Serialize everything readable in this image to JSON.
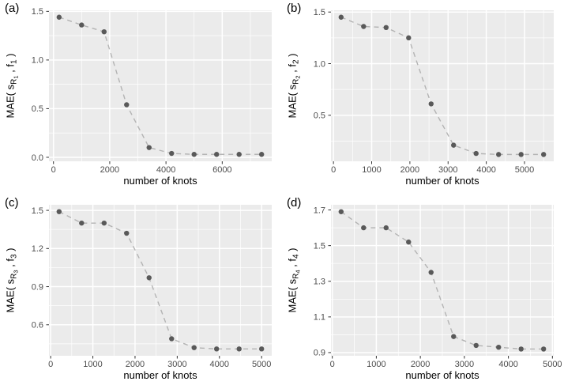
{
  "figure": {
    "background": "#ffffff",
    "panel_bg": "#ebebeb",
    "grid_color": "#ffffff",
    "point_color": "#595959",
    "line_color": "#b3b3b3",
    "tick_label_color": "#4d4d4d",
    "tick_mark_color": "#333333",
    "axis_title_color": "#000000"
  },
  "chart_data": [
    {
      "panel_label": "(a)",
      "type": "line",
      "line_style": "dashed",
      "grid": true,
      "xlabel": "number of knots",
      "ylabel_text": "MAE( s_R1 , f_1 )",
      "ylabel_parts": {
        "pre": "MAE( s",
        "s_sub": "R",
        "s_subsub": "1",
        "mid": " , f",
        "f_sub": "1",
        "post": " )"
      },
      "x": [
        200,
        1000,
        1800,
        2600,
        3400,
        4200,
        5000,
        5800,
        6600,
        7400
      ],
      "y": [
        1.44,
        1.36,
        1.29,
        0.54,
        0.1,
        0.04,
        0.03,
        0.03,
        0.03,
        0.03
      ],
      "xlim": [
        -160,
        7760
      ],
      "ylim": [
        -0.041,
        1.511
      ],
      "xticks": [
        0,
        2000,
        4000,
        6000
      ],
      "xtick_labels": [
        "0",
        "2000",
        "4000",
        "6000"
      ],
      "xminor": [
        1000,
        3000,
        5000,
        7000
      ],
      "yticks": [
        0,
        0.5,
        1,
        1.5
      ],
      "ytick_labels": [
        "0.0",
        "0.5",
        "1.0",
        "1.5"
      ],
      "yminor": [
        0.25,
        0.75,
        1.25
      ]
    },
    {
      "panel_label": "(b)",
      "type": "line",
      "line_style": "dashed",
      "grid": true,
      "xlabel": "number of knots",
      "ylabel_text": "MAE( s_R2 , f_2 )",
      "ylabel_parts": {
        "pre": "MAE( s",
        "s_sub": "R",
        "s_subsub": "2",
        "mid": " , f",
        "f_sub": "2",
        "post": " )"
      },
      "x": [
        200,
        789,
        1378,
        1967,
        2556,
        3144,
        3733,
        4322,
        4911,
        5500
      ],
      "y": [
        1.45,
        1.36,
        1.35,
        1.25,
        0.61,
        0.21,
        0.13,
        0.12,
        0.12,
        0.12
      ],
      "xlim": [
        -65,
        5765
      ],
      "ylim": [
        0.054,
        1.517
      ],
      "xticks": [
        0,
        1000,
        2000,
        3000,
        4000,
        5000
      ],
      "xtick_labels": [
        "0",
        "1000",
        "2000",
        "3000",
        "4000",
        "5000"
      ],
      "xminor": [
        500,
        1500,
        2500,
        3500,
        4500,
        5500
      ],
      "yticks": [
        0.5,
        1,
        1.5
      ],
      "ytick_labels": [
        "0.5",
        "1.0",
        "1.5"
      ],
      "yminor": [
        0.25,
        0.75,
        1.25
      ]
    },
    {
      "panel_label": "(c)",
      "type": "line",
      "line_style": "dashed",
      "grid": true,
      "xlabel": "number of knots",
      "ylabel_text": "MAE( s_R3 , f_3 )",
      "ylabel_parts": {
        "pre": "MAE( s",
        "s_sub": "R",
        "s_subsub": "3",
        "mid": " , f",
        "f_sub": "3",
        "post": " )"
      },
      "x": [
        200,
        733,
        1267,
        1800,
        2333,
        2867,
        3400,
        3933,
        4467,
        5000
      ],
      "y": [
        1.49,
        1.4,
        1.4,
        1.32,
        0.97,
        0.49,
        0.42,
        0.41,
        0.41,
        0.41
      ],
      "xlim": [
        -40,
        5240
      ],
      "ylim": [
        0.356,
        1.544
      ],
      "xticks": [
        0,
        1000,
        2000,
        3000,
        4000,
        5000
      ],
      "xtick_labels": [
        "0",
        "1000",
        "2000",
        "3000",
        "4000",
        "5000"
      ],
      "xminor": [
        500,
        1500,
        2500,
        3500,
        4500
      ],
      "yticks": [
        0.6,
        0.9,
        1.2,
        1.5
      ],
      "ytick_labels": [
        "0.6",
        "0.9",
        "1.2",
        "1.5"
      ],
      "yminor": [
        0.45,
        0.75,
        1.05,
        1.35
      ]
    },
    {
      "panel_label": "(d)",
      "type": "line",
      "line_style": "dashed",
      "grid": true,
      "xlabel": "number of knots",
      "ylabel_text": "MAE( s_R4 , f_4 )",
      "ylabel_parts": {
        "pre": "MAE( s",
        "s_sub": "R",
        "s_subsub": "4",
        "mid": " , f",
        "f_sub": "4",
        "post": " )"
      },
      "x": [
        200,
        711,
        1222,
        1733,
        2244,
        2756,
        3267,
        3778,
        4289,
        4800
      ],
      "y": [
        1.69,
        1.6,
        1.6,
        1.52,
        1.35,
        0.99,
        0.94,
        0.93,
        0.92,
        0.92
      ],
      "xlim": [
        -30,
        5030
      ],
      "ylim": [
        0.882,
        1.729
      ],
      "xticks": [
        0,
        1000,
        2000,
        3000,
        4000,
        5000
      ],
      "xtick_labels": [
        "0",
        "1000",
        "2000",
        "3000",
        "4000",
        "5000"
      ],
      "xminor": [
        500,
        1500,
        2500,
        3500,
        4500
      ],
      "yticks": [
        0.9,
        1.1,
        1.3,
        1.5,
        1.7
      ],
      "ytick_labels": [
        "0.9",
        "1.1",
        "1.3",
        "1.5",
        "1.7"
      ],
      "yminor": [
        1.0,
        1.2,
        1.4,
        1.6
      ]
    }
  ]
}
